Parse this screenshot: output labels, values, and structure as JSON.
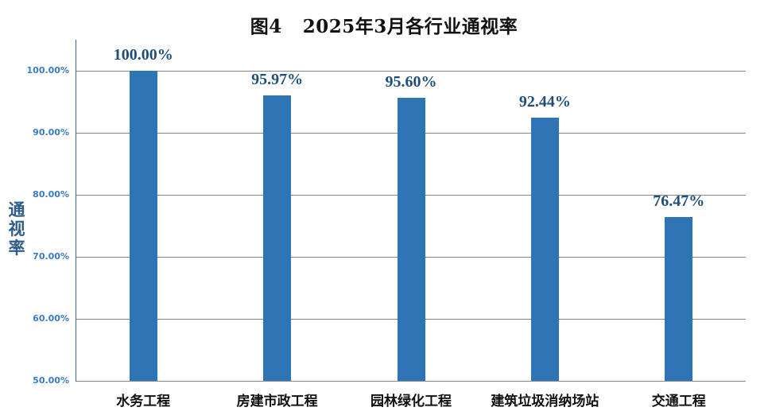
{
  "title_prefix": "图4",
  "title_main": "2025年3月各行业通视率",
  "chart_data": {
    "type": "bar",
    "title": "图4  2025年3月各行业通视率",
    "xlabel": "",
    "ylabel": "通视率",
    "ylim": [
      50,
      100
    ],
    "grid": true,
    "legend": null,
    "categories": [
      "水务工程",
      "房建市政工程",
      "园林绿化工程",
      "建筑垃圾消纳场站",
      "交通工程"
    ],
    "values": [
      100.0,
      95.97,
      95.6,
      92.44,
      76.47
    ],
    "data_labels": [
      "100.00%",
      "95.97%",
      "95.60%",
      "92.44%",
      "76.47%"
    ],
    "yticks": [
      "100.00%",
      "90.00%",
      "80.00%",
      "70.00%",
      "60.00%",
      "50.00%"
    ],
    "bar_color": "#2E75B6"
  },
  "ylabel_chars": [
    "通",
    "视",
    "率"
  ]
}
